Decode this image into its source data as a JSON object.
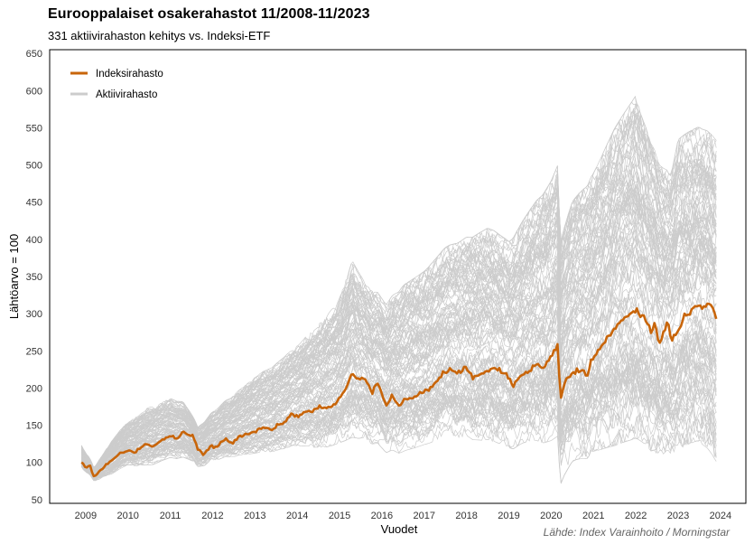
{
  "chart_data": {
    "type": "line",
    "title": "Eurooppalaiset osakerahastot 11/2008-11/2023",
    "subtitle": "331 aktiivirahaston kehitys vs. Indeksi-ETF",
    "xlabel": "Vuodet",
    "ylabel": "Lähtöarvo = 100",
    "source": "Lähde: Index Varainhoito / Morningstar",
    "xlim": [
      2008.15,
      2024.6
    ],
    "ylim": [
      45,
      655
    ],
    "x_ticks": [
      2009,
      2010,
      2011,
      2012,
      2013,
      2014,
      2015,
      2016,
      2017,
      2018,
      2019,
      2020,
      2021,
      2022,
      2023,
      2024
    ],
    "x_tick_labels": [
      "2009",
      "2010",
      "2011",
      "2012",
      "2013",
      "2014",
      "2015",
      "2016",
      "2017",
      "2018",
      "2019",
      "2020",
      "2021",
      "2022",
      "2023",
      "2024"
    ],
    "y_ticks": [
      50,
      100,
      150,
      200,
      250,
      300,
      350,
      400,
      450,
      500,
      550,
      600,
      650
    ],
    "y_tick_labels": [
      "50",
      "100",
      "150",
      "200",
      "250",
      "300",
      "350",
      "400",
      "450",
      "500",
      "550",
      "600",
      "650"
    ],
    "grid": false,
    "legend": {
      "placement": "top-left",
      "entries": [
        {
          "name": "Indeksirahasto",
          "color": "#C8650A"
        },
        {
          "name": "Aktiivirahasto",
          "color": "#CCCCCC"
        }
      ]
    },
    "active_fund_count": 331,
    "series": [
      {
        "name": "Indeksirahasto",
        "color": "#C8650A",
        "x": [
          2008.9,
          2009.0,
          2009.1,
          2009.2,
          2009.35,
          2009.5,
          2009.65,
          2009.8,
          2010.0,
          2010.15,
          2010.3,
          2010.45,
          2010.6,
          2010.8,
          2011.0,
          2011.15,
          2011.3,
          2011.45,
          2011.55,
          2011.65,
          2011.8,
          2011.95,
          2012.1,
          2012.3,
          2012.45,
          2012.6,
          2012.8,
          2013.0,
          2013.2,
          2013.4,
          2013.5,
          2013.7,
          2013.9,
          2014.05,
          2014.2,
          2014.35,
          2014.5,
          2014.7,
          2014.85,
          2015.0,
          2015.15,
          2015.3,
          2015.45,
          2015.6,
          2015.75,
          2015.9,
          2016.1,
          2016.25,
          2016.4,
          2016.55,
          2016.75,
          2016.9,
          2017.1,
          2017.3,
          2017.45,
          2017.6,
          2017.8,
          2018.0,
          2018.15,
          2018.3,
          2018.5,
          2018.65,
          2018.8,
          2018.95,
          2019.1,
          2019.3,
          2019.5,
          2019.65,
          2019.8,
          2020.0,
          2020.1,
          2020.15,
          2020.22,
          2020.3,
          2020.45,
          2020.6,
          2020.75,
          2020.85,
          2020.95,
          2021.1,
          2021.3,
          2021.5,
          2021.7,
          2021.85,
          2022.0,
          2022.1,
          2022.25,
          2022.35,
          2022.45,
          2022.55,
          2022.65,
          2022.75,
          2022.85,
          2023.0,
          2023.15,
          2023.3,
          2023.45,
          2023.55,
          2023.7,
          2023.8,
          2023.9
        ],
        "values": [
          100,
          93,
          96,
          80,
          90,
          97,
          104,
          112,
          117,
          113,
          120,
          125,
          122,
          130,
          136,
          132,
          140,
          137,
          134,
          118,
          110,
          122,
          120,
          132,
          125,
          135,
          138,
          142,
          148,
          143,
          150,
          155,
          165,
          162,
          170,
          168,
          175,
          172,
          177,
          185,
          200,
          218,
          212,
          216,
          195,
          208,
          178,
          190,
          175,
          185,
          188,
          192,
          198,
          210,
          220,
          225,
          218,
          228,
          215,
          220,
          224,
          228,
          222,
          218,
          203,
          220,
          225,
          232,
          225,
          243,
          253,
          258,
          185,
          205,
          218,
          224,
          222,
          215,
          240,
          248,
          265,
          280,
          292,
          298,
          306,
          298,
          292,
          275,
          288,
          260,
          272,
          290,
          262,
          280,
          295,
          305,
          312,
          308,
          314,
          306,
          293
        ]
      },
      {
        "name": "Aktiivirahasto",
        "color": "#CCCCCC",
        "note": "331 individual fund lines; envelope summarized below",
        "envelope_x": [
          2008.9,
          2009.2,
          2009.6,
          2010.0,
          2010.5,
          2011.0,
          2011.3,
          2011.65,
          2012.0,
          2012.5,
          2013.0,
          2013.5,
          2014.0,
          2014.5,
          2015.0,
          2015.3,
          2015.6,
          2016.1,
          2016.5,
          2017.0,
          2017.5,
          2018.0,
          2018.5,
          2019.0,
          2019.5,
          2020.0,
          2020.15,
          2020.22,
          2020.5,
          2021.0,
          2021.5,
          2022.0,
          2022.1,
          2022.5,
          2022.8,
          2023.0,
          2023.5,
          2023.9
        ],
        "envelope_max": [
          128,
          95,
          130,
          160,
          180,
          192,
          185,
          150,
          175,
          200,
          225,
          245,
          270,
          300,
          340,
          390,
          355,
          330,
          360,
          380,
          410,
          425,
          440,
          420,
          470,
          510,
          530,
          420,
          480,
          520,
          580,
          625,
          600,
          530,
          500,
          560,
          570,
          550
        ],
        "envelope_min": [
          95,
          75,
          85,
          100,
          100,
          110,
          108,
          95,
          108,
          115,
          120,
          125,
          132,
          130,
          140,
          145,
          140,
          125,
          130,
          140,
          148,
          150,
          145,
          135,
          150,
          150,
          155,
          85,
          120,
          135,
          140,
          150,
          145,
          120,
          118,
          130,
          135,
          105
        ]
      }
    ]
  }
}
